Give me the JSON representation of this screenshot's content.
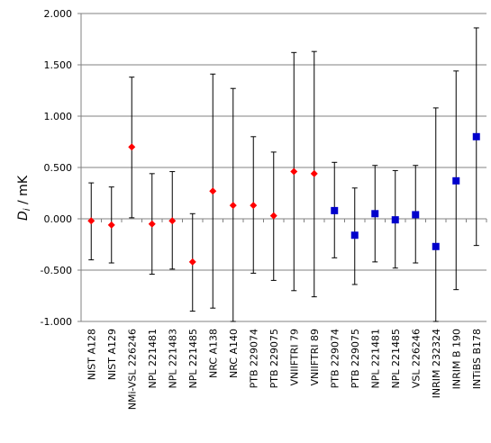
{
  "chart_data": {
    "type": "scatter",
    "ylabel": "D_i / mK",
    "ylabel_main": "D",
    "ylabel_sub": "i",
    "ylabel_rest": " / mK",
    "ylim": [
      -1.0,
      2.0
    ],
    "yticks": [
      2.0,
      1.5,
      1.0,
      0.5,
      0.0,
      -0.5,
      -1.0
    ],
    "ytick_labels": [
      "2.000",
      "1.500",
      "1.000",
      "0.500",
      "0.000",
      "-0.500",
      "-1.000"
    ],
    "grid": true,
    "categories": [
      "NIST A128",
      "NIST A129",
      "NMi-VSL 226246",
      "NPL 221481",
      "NPL 221483",
      "NPL 221485",
      "NRC A138",
      "NRC A140",
      "PTB 229074",
      "PTB 229075",
      "VNIIFTRI 79",
      "VNIIFTRI 89",
      "PTB 229074",
      "PTB 229075",
      "NPL 221481",
      "NPL 221485",
      "VSL 226246",
      "INRIM 232324",
      "INRIM B 190",
      "INTiBS B178"
    ],
    "series": [
      {
        "marker": "diamond",
        "color": "#ff0000",
        "points": [
          {
            "i": 0,
            "y": -0.02,
            "lo": -0.4,
            "hi": 0.35
          },
          {
            "i": 1,
            "y": -0.06,
            "lo": -0.43,
            "hi": 0.31
          },
          {
            "i": 2,
            "y": 0.7,
            "lo": 0.01,
            "hi": 1.38
          },
          {
            "i": 3,
            "y": -0.05,
            "lo": -0.54,
            "hi": 0.44
          },
          {
            "i": 4,
            "y": -0.02,
            "lo": -0.49,
            "hi": 0.46
          },
          {
            "i": 5,
            "y": -0.42,
            "lo": -0.9,
            "hi": 0.05
          },
          {
            "i": 6,
            "y": 0.27,
            "lo": -0.87,
            "hi": 1.41
          },
          {
            "i": 7,
            "y": 0.13,
            "lo": -1.0,
            "hi": 1.27
          },
          {
            "i": 8,
            "y": 0.13,
            "lo": -0.53,
            "hi": 0.8
          },
          {
            "i": 9,
            "y": 0.03,
            "lo": -0.6,
            "hi": 0.65
          },
          {
            "i": 10,
            "y": 0.46,
            "lo": -0.7,
            "hi": 1.62
          },
          {
            "i": 11,
            "y": 0.44,
            "lo": -0.76,
            "hi": 1.63
          }
        ]
      },
      {
        "marker": "square",
        "color": "#0000cc",
        "points": [
          {
            "i": 12,
            "y": 0.08,
            "lo": -0.38,
            "hi": 0.55
          },
          {
            "i": 13,
            "y": -0.16,
            "lo": -0.64,
            "hi": 0.3
          },
          {
            "i": 14,
            "y": 0.05,
            "lo": -0.42,
            "hi": 0.52
          },
          {
            "i": 15,
            "y": -0.01,
            "lo": -0.48,
            "hi": 0.47
          },
          {
            "i": 16,
            "y": 0.04,
            "lo": -0.43,
            "hi": 0.52
          },
          {
            "i": 17,
            "y": -0.27,
            "lo": -1.0,
            "hi": 1.08
          },
          {
            "i": 18,
            "y": 0.37,
            "lo": -0.69,
            "hi": 1.44
          },
          {
            "i": 19,
            "y": 0.8,
            "lo": -0.26,
            "hi": 1.86
          }
        ]
      }
    ]
  }
}
